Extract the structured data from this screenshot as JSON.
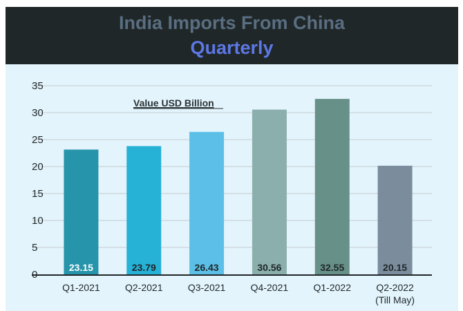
{
  "header": {
    "title_line1": "India Imports From China",
    "title_line2": "Quarterly"
  },
  "colors": {
    "header_bg": "#202728",
    "title_line1": "#5a6e82",
    "title_line2": "#5c78e6",
    "plot_bg": "#e3f4fc",
    "grid": "#c5ccd0",
    "axis": "#1f2628"
  },
  "chart_data": {
    "type": "bar",
    "title": "India Imports From China",
    "subtitle": "Quarterly",
    "annotation": "Value USD Billion",
    "categories": [
      "Q1-2021",
      "Q2-2021",
      "Q3-2021",
      "Q4-2021",
      "Q1-2022",
      "Q2-2022"
    ],
    "category_sublabels": [
      "",
      "",
      "",
      "",
      "",
      "(Till May)"
    ],
    "values": [
      23.15,
      23.79,
      26.43,
      30.56,
      32.55,
      20.15
    ],
    "value_labels": [
      "23.15",
      "23.79",
      "26.43",
      "30.56",
      "32.55",
      "20.15"
    ],
    "bar_colors": [
      "#2694ab",
      "#26b1d7",
      "#5cbfe7",
      "#8aafac",
      "#679088",
      "#7b8c9d"
    ],
    "value_label_colors": [
      "#ffffff",
      "#1f2628",
      "#1f2628",
      "#1f2628",
      "#1f2628",
      "#1f2628"
    ],
    "ylim": [
      0,
      35
    ],
    "yticks": [
      0,
      5,
      10,
      15,
      20,
      25,
      30,
      35
    ],
    "ytick_labels": [
      "0",
      "5",
      "10",
      "15",
      "20",
      "25",
      "30",
      "35"
    ],
    "grid": true,
    "legend": "none"
  }
}
